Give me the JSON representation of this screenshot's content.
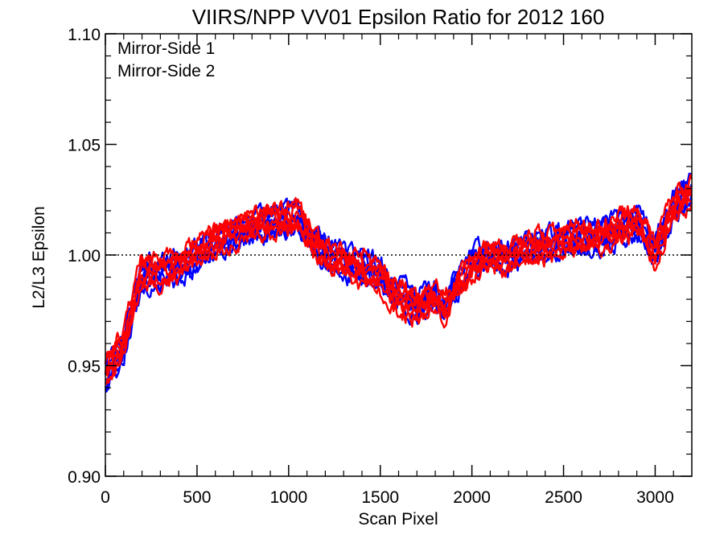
{
  "chart_data": {
    "type": "line",
    "title": "VIIRS/NPP VV01 Epsilon Ratio for 2012 160",
    "xlabel": "Scan Pixel",
    "ylabel": "L2/L3 Epsilon",
    "xlim": [
      0,
      3200
    ],
    "ylim": [
      0.9,
      1.1
    ],
    "x_ticks": [
      0,
      500,
      1000,
      1500,
      2000,
      2500,
      3000
    ],
    "x_tick_labels": [
      "0",
      "500",
      "1000",
      "1500",
      "2000",
      "2500",
      "3000"
    ],
    "y_ticks": [
      0.9,
      0.95,
      1.0,
      1.05,
      1.1
    ],
    "y_tick_labels": [
      "0.90",
      "0.95",
      "1.00",
      "1.05",
      "1.10"
    ],
    "reference_line": {
      "y": 1.0,
      "style": "dotted"
    },
    "legend": {
      "position": "top-left",
      "entries": [
        {
          "label": "Mirror-Side 1",
          "color": "#0000ff"
        },
        {
          "label": "Mirror-Side 2",
          "color": "#ff0000"
        }
      ]
    },
    "series": [
      {
        "name": "Mirror-Side 1",
        "color": "#0000ff",
        "note": "bundle of several detector curves",
        "x": [
          0,
          50,
          100,
          150,
          200,
          300,
          400,
          500,
          600,
          700,
          800,
          900,
          1000,
          1050,
          1100,
          1200,
          1300,
          1400,
          1500,
          1550,
          1600,
          1700,
          1800,
          1850,
          1900,
          2000,
          2100,
          2200,
          2300,
          2400,
          2500,
          2600,
          2700,
          2800,
          2900,
          3000,
          3100,
          3200
        ],
        "y": [
          0.944,
          0.952,
          0.958,
          0.975,
          0.991,
          0.992,
          0.994,
          0.999,
          1.006,
          1.009,
          1.013,
          1.015,
          1.016,
          1.017,
          1.011,
          1.003,
          0.999,
          0.997,
          0.995,
          0.987,
          0.985,
          0.979,
          0.984,
          0.976,
          0.986,
          0.997,
          0.999,
          0.999,
          1.003,
          1.004,
          1.006,
          1.009,
          1.008,
          1.012,
          1.015,
          1.002,
          1.022,
          1.03
        ]
      },
      {
        "name": "Mirror-Side 2",
        "color": "#ff0000",
        "note": "bundle of several detector curves",
        "x": [
          0,
          50,
          100,
          150,
          200,
          300,
          400,
          500,
          600,
          700,
          800,
          900,
          1000,
          1050,
          1100,
          1200,
          1300,
          1400,
          1500,
          1550,
          1600,
          1700,
          1800,
          1850,
          1900,
          2000,
          2100,
          2200,
          2300,
          2400,
          2500,
          2600,
          2700,
          2800,
          2900,
          3000,
          3100,
          3200
        ],
        "y": [
          0.948,
          0.955,
          0.961,
          0.978,
          0.993,
          0.993,
          0.995,
          1.001,
          1.007,
          1.01,
          1.014,
          1.015,
          1.016,
          1.017,
          1.011,
          1.002,
          0.999,
          0.996,
          0.993,
          0.986,
          0.984,
          0.979,
          0.983,
          0.977,
          0.985,
          0.995,
          0.999,
          0.999,
          1.003,
          1.004,
          1.007,
          1.009,
          1.008,
          1.012,
          1.015,
          1.001,
          1.022,
          1.028
        ]
      }
    ]
  }
}
